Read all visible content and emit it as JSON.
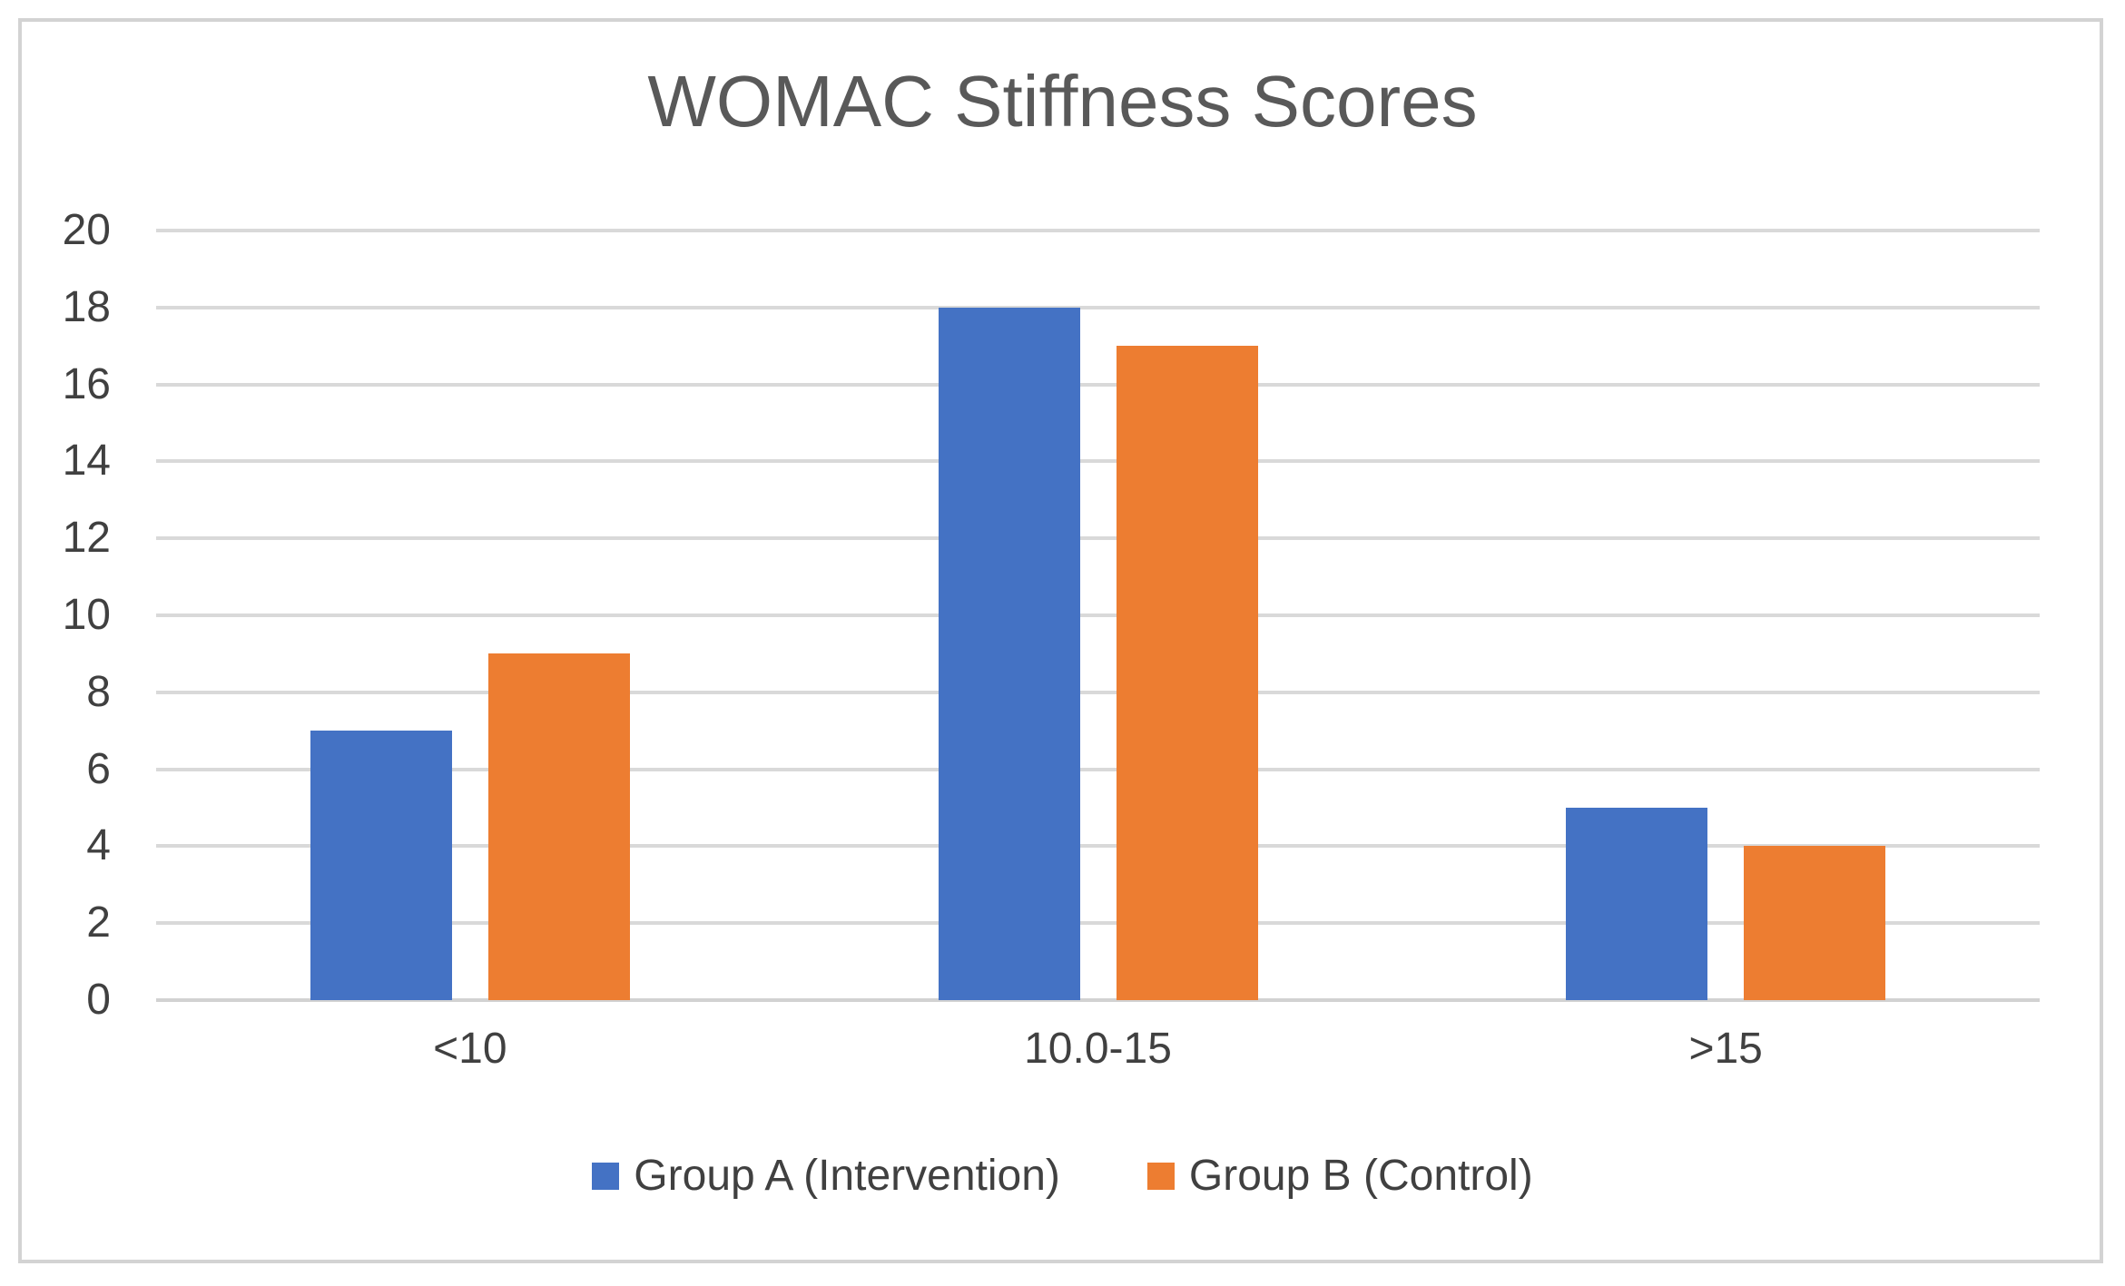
{
  "chart_data": {
    "type": "bar",
    "title": "WOMAC Stiffness Scores",
    "categories": [
      "<10",
      "10.0-15",
      ">15"
    ],
    "series": [
      {
        "name": "Group A (Intervention)",
        "color": "#4472C4",
        "values": [
          7,
          18,
          5
        ]
      },
      {
        "name": "Group B (Control)",
        "color": "#ED7D31",
        "values": [
          9,
          17,
          4
        ]
      }
    ],
    "xlabel": "",
    "ylabel": "",
    "ylim": [
      0,
      20
    ],
    "yticks": [
      0,
      2,
      4,
      6,
      8,
      10,
      12,
      14,
      16,
      18,
      20
    ],
    "grid": "horizontal",
    "legend_position": "bottom"
  },
  "style": {
    "series_a_color": "#4472C4",
    "series_b_color": "#ED7D31",
    "gridline_color": "#D9D9D9",
    "frame_border_color": "#D3D3D3",
    "title_color": "#595959",
    "axis_text_color": "#404040",
    "background_color": "#FFFFFF"
  }
}
